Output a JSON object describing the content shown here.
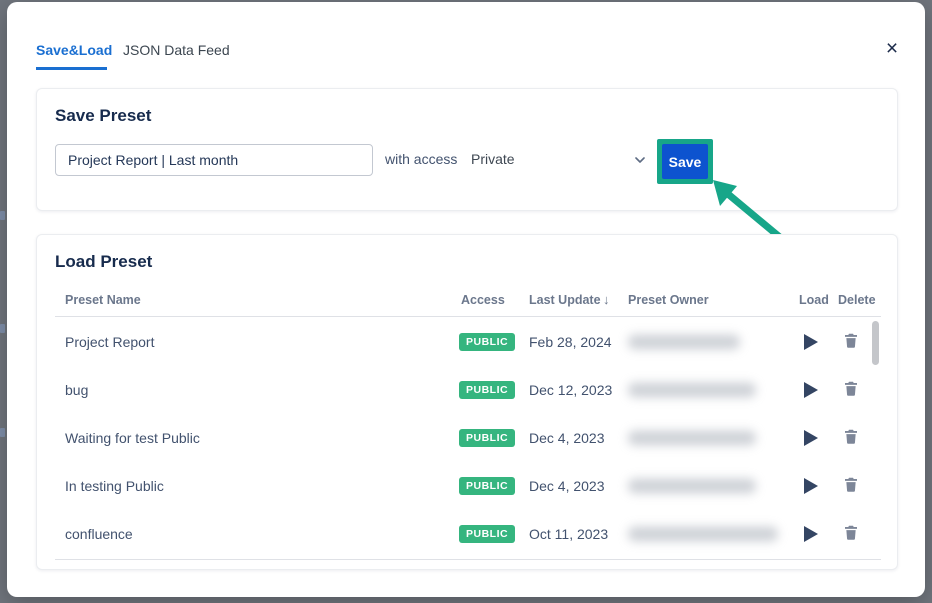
{
  "modal": {
    "tabs": [
      {
        "label": "Save&Load",
        "active": true
      },
      {
        "label": "JSON Data Feed",
        "active": false
      }
    ],
    "close_glyph": "×",
    "save_preset": {
      "title": "Save Preset",
      "input_value": "Project Report | Last month",
      "with_access_label": "with access",
      "access_selected": "Private",
      "save_button_label": "Save"
    },
    "load_preset": {
      "title": "Load Preset",
      "columns": [
        "Preset Name",
        "Access",
        "Last Update",
        "Preset Owner",
        "Load",
        "Delete"
      ],
      "sort_glyph": "↓",
      "rows": [
        {
          "name": "Project Report",
          "access": "PUBLIC",
          "last_update": "Feb 28, 2024",
          "owner_redacted": true,
          "owner_blur_width": 112
        },
        {
          "name": "bug",
          "access": "PUBLIC",
          "last_update": "Dec 12, 2023",
          "owner_redacted": true,
          "owner_blur_width": 128
        },
        {
          "name": "Waiting for test Public",
          "access": "PUBLIC",
          "last_update": "Dec 4, 2023",
          "owner_redacted": true,
          "owner_blur_width": 128
        },
        {
          "name": "In testing Public",
          "access": "PUBLIC",
          "last_update": "Dec 4, 2023",
          "owner_redacted": true,
          "owner_blur_width": 128
        },
        {
          "name": "confluence",
          "access": "PUBLIC",
          "last_update": "Oct 11, 2023",
          "owner_redacted": true,
          "owner_blur_width": 150
        }
      ]
    }
  },
  "annotation": {
    "type": "highlight-box-and-arrow",
    "target": "Save button",
    "color": "#17a689"
  },
  "colors": {
    "active_tab_blue": "#1a6fd1",
    "primary_button_blue": "#0d53cf",
    "badge_green": "#35b57f",
    "annotation_teal": "#17a689",
    "title_navy": "#172b4d",
    "overlay_background": "#70757d"
  }
}
